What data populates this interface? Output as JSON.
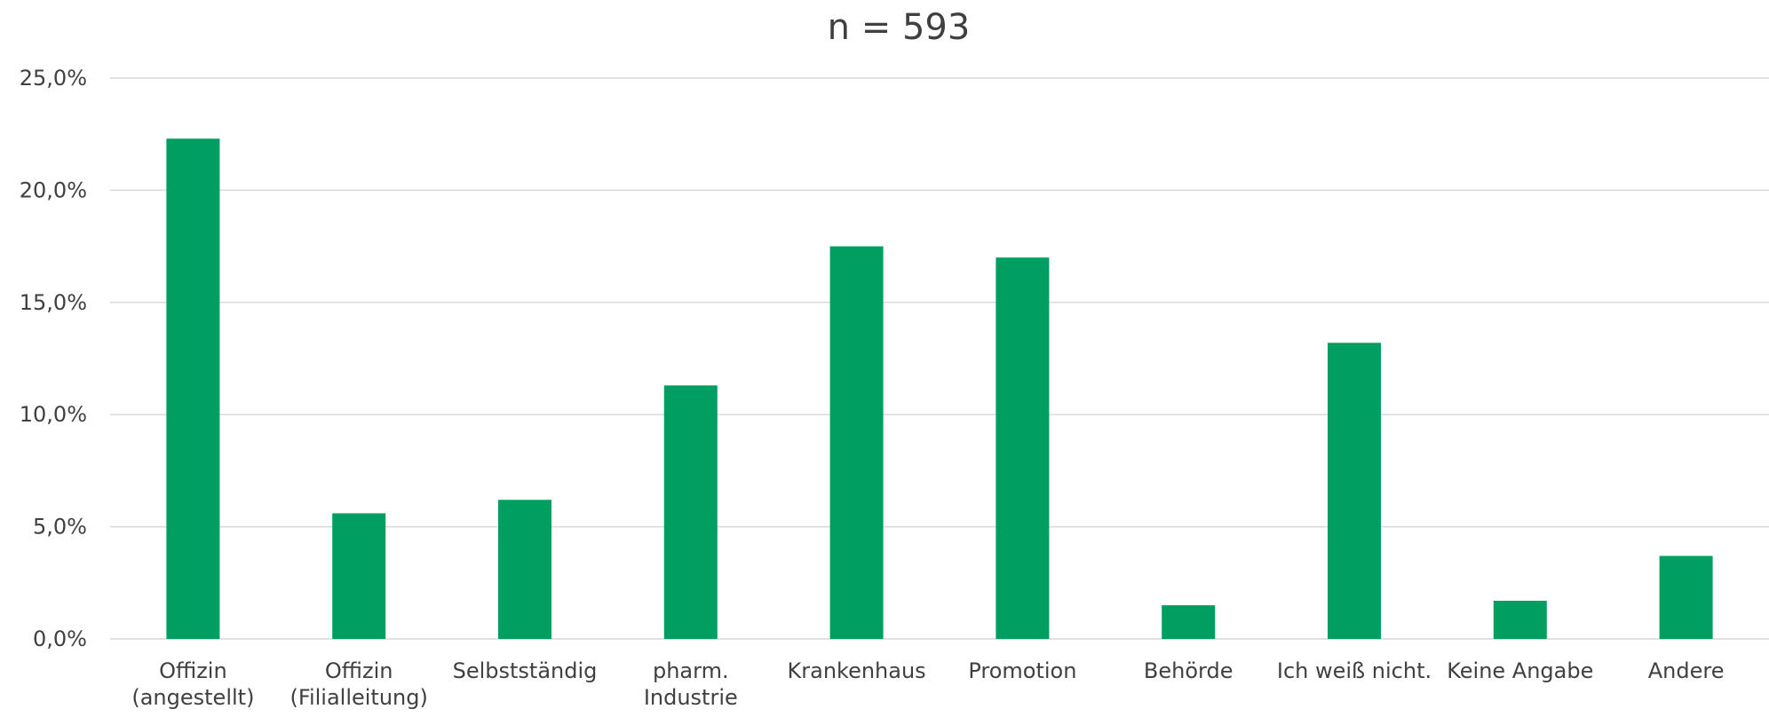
{
  "chart_data": {
    "type": "bar",
    "title": "n = 593",
    "xlabel": "",
    "ylabel": "",
    "categories": [
      [
        "Offizin",
        "(angestellt)"
      ],
      [
        "Offizin",
        "(Filialleitung)"
      ],
      [
        "Selbstständig"
      ],
      [
        "pharm.",
        "Industrie"
      ],
      [
        "Krankenhaus"
      ],
      [
        "Promotion"
      ],
      [
        "Behörde"
      ],
      [
        "Ich weiß nicht."
      ],
      [
        "Keine Angabe"
      ],
      [
        "Andere"
      ]
    ],
    "values": [
      22.3,
      5.6,
      6.2,
      11.3,
      17.5,
      17.0,
      1.5,
      13.2,
      1.7,
      3.7
    ],
    "ylim": [
      0,
      25
    ],
    "yticks": [
      0,
      5,
      10,
      15,
      20,
      25
    ],
    "ytick_labels": [
      "0,0%",
      "5,0%",
      "10,0%",
      "15,0%",
      "20,0%",
      "25,0%"
    ],
    "grid": true,
    "legend": "none",
    "bar_color": "#009E60",
    "grid_color": "#D9D9D9",
    "text_color": "#404040"
  }
}
